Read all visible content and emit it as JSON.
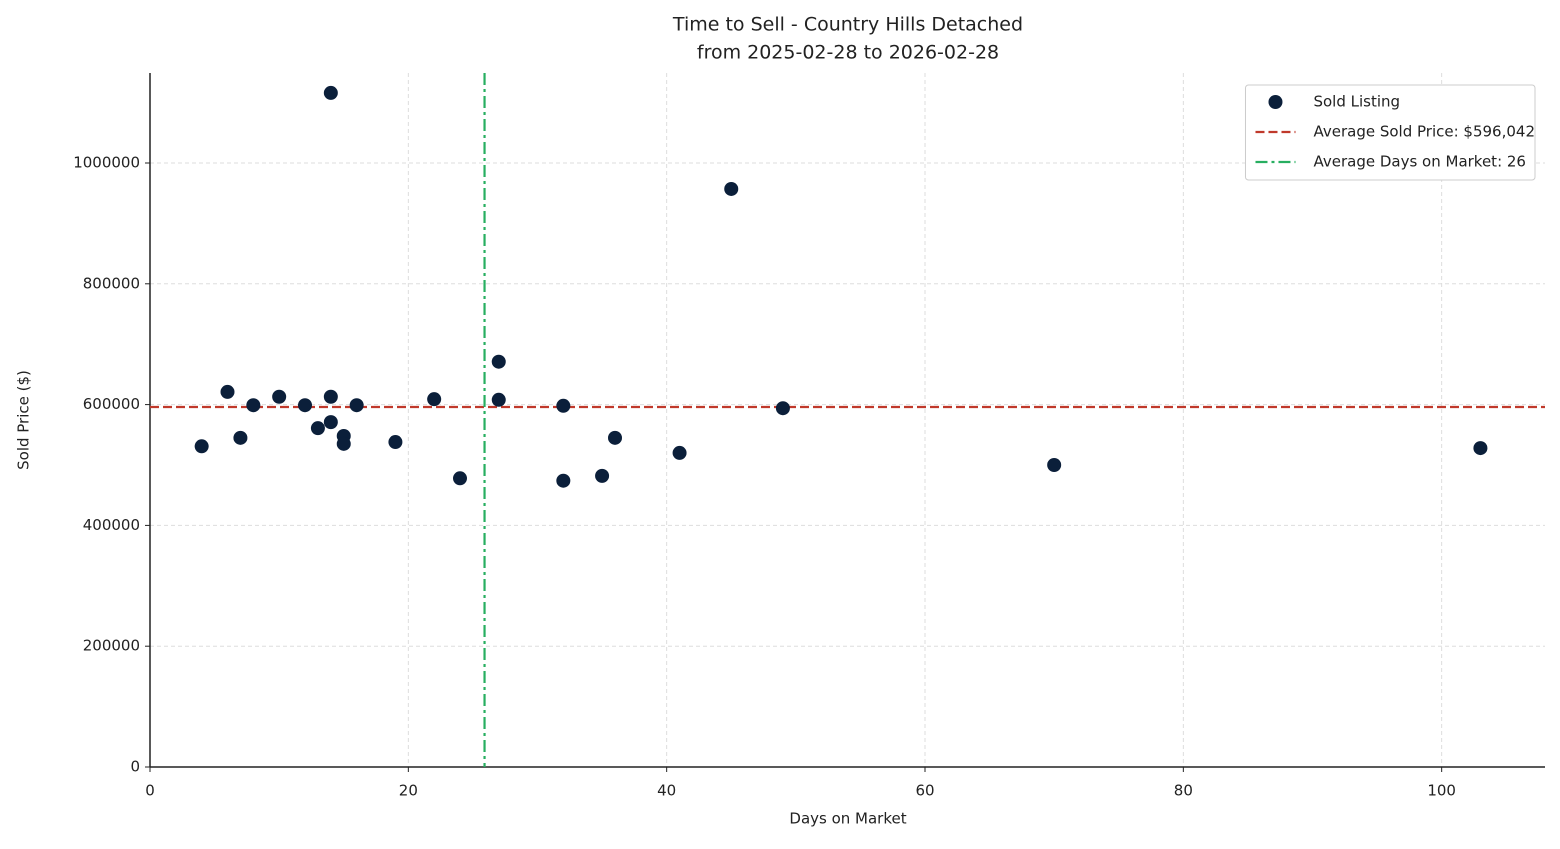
{
  "chart_data": {
    "type": "scatter",
    "title": "Time to Sell - Country Hills Detached",
    "subtitle": "from 2025-02-28 to 2026-02-28",
    "x_label": "Days on Market",
    "y_label": "Sold Price ($)",
    "x": [
      4,
      6,
      7,
      8,
      10,
      12,
      13,
      14,
      14,
      14,
      15,
      15,
      16,
      19,
      22,
      24,
      27,
      27,
      32,
      32,
      35,
      36,
      41,
      45,
      49,
      70,
      103
    ],
    "series": [
      {
        "name": "Sold Listing",
        "color": "#0b1f3a",
        "values": [
          531000,
          621000,
          545000,
          599000,
          613000,
          599000,
          561000,
          1116000,
          613000,
          571000,
          548000,
          535000,
          599000,
          538000,
          609000,
          478000,
          671000,
          608000,
          598000,
          474000,
          482000,
          545000,
          520000,
          957000,
          594000,
          500000,
          528000
        ]
      }
    ],
    "reference_lines": [
      {
        "name": "Average Sold Price: $596,042",
        "orientation": "horizontal",
        "value": 596042,
        "color": "#c0392b",
        "style": "dashed"
      },
      {
        "name": "Average Days on Market: 26",
        "orientation": "vertical",
        "value": 25.9,
        "color": "#27ae60",
        "style": "dashdot"
      }
    ],
    "xlim": [
      0,
      108
    ],
    "ylim": [
      0,
      1149000
    ],
    "xticks": [
      0,
      20,
      40,
      60,
      80,
      100
    ],
    "yticks": [
      0,
      200000,
      400000,
      600000,
      800000,
      1000000
    ],
    "grid": true,
    "legend": "upper right"
  }
}
